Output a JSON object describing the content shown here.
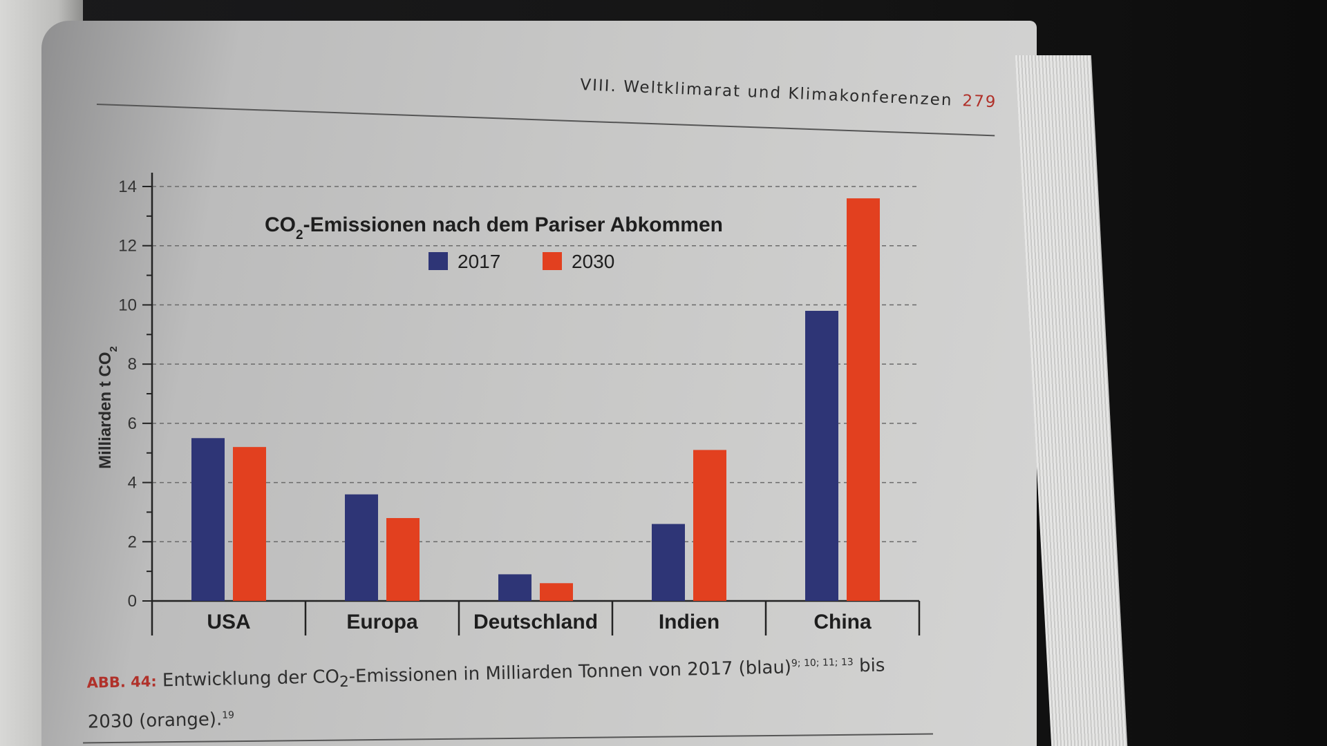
{
  "header": {
    "chapter": "VIII. Weltklimarat und Klimakonferenzen",
    "page_number": "279"
  },
  "colors": {
    "series_2017": "#2e3576",
    "series_2030": "#e2401f",
    "page_number": "#b0312a"
  },
  "caption": {
    "label": "ABB. 44:",
    "text_before": " Entwicklung der CO",
    "co2_sub": "2",
    "text_middle": "-Emissionen in Milliarden Tonnen von 2017 (blau)",
    "refs_2017": "9; 10; 11; 13",
    "text_after": " bis 2030 (orange).",
    "refs_2030": "19"
  },
  "chart_data": {
    "type": "bar",
    "title_prefix": "CO",
    "title_sub": "2",
    "title_rest": "-Emissionen nach dem Pariser Abkommen",
    "ylabel_main": "Milliarden t CO",
    "ylabel_sub": "2",
    "categories": [
      "USA",
      "Europa",
      "Deutschland",
      "Indien",
      "China"
    ],
    "series": [
      {
        "name": "2017",
        "color": "#2e3576",
        "values": [
          5.5,
          3.6,
          0.9,
          2.6,
          9.8
        ]
      },
      {
        "name": "2030",
        "color": "#e2401f",
        "values": [
          5.2,
          2.8,
          0.6,
          5.1,
          13.6
        ]
      }
    ],
    "ylim": [
      0,
      14
    ],
    "yticks": [
      0,
      2,
      4,
      6,
      8,
      10,
      12,
      14
    ],
    "grid": "dashed",
    "legend": "top-center"
  }
}
